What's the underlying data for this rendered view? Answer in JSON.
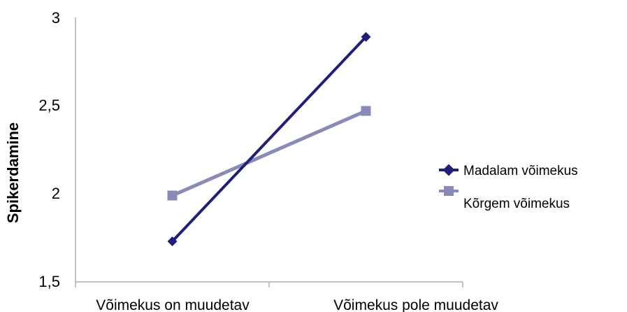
{
  "chart_data": {
    "type": "line",
    "categories": [
      "Võimekus on muudetav",
      "Võimekus pole muudetav"
    ],
    "ylabel": "Spikerdamine",
    "ylim": [
      1.5,
      3
    ],
    "yticks": [
      "1,5",
      "2",
      "2,5",
      "3"
    ],
    "ytick_values": [
      1.5,
      2,
      2.5,
      3
    ],
    "grid": false,
    "legend_position": "right",
    "series": [
      {
        "name": "Madalam võimekus",
        "values": [
          1.73,
          2.89
        ],
        "color": "#1f1f7a",
        "marker": "diamond"
      },
      {
        "name": "Kõrgem võimekus",
        "values": [
          1.99,
          2.47
        ],
        "color": "#8a8ab8",
        "marker": "square"
      }
    ]
  }
}
